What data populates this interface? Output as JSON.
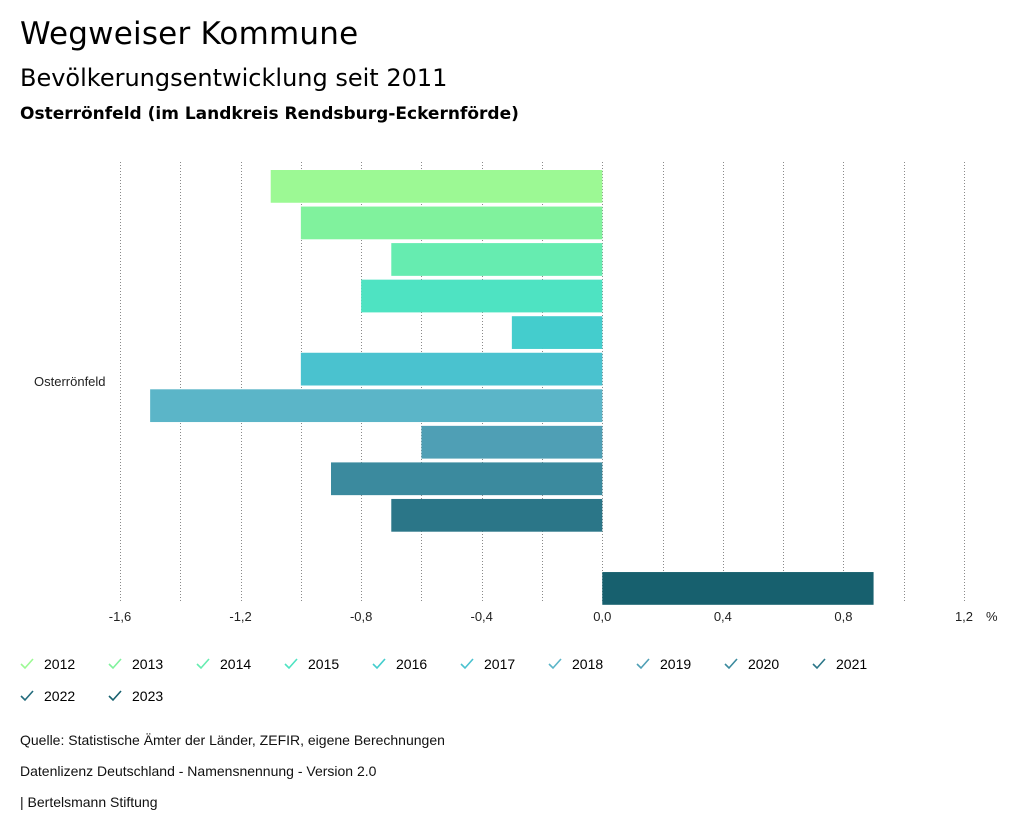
{
  "header": {
    "title": "Wegweiser Kommune",
    "subtitle": "Bevölkerungsentwicklung seit 2011",
    "region": "Osterrönfeld (im Landkreis Rendsburg-Eckernförde)"
  },
  "chart_data": {
    "type": "bar",
    "orientation": "horizontal",
    "categories": [
      "Osterrönfeld"
    ],
    "series": [
      {
        "name": "2012",
        "values": [
          -1.1
        ],
        "color": "#9cf994"
      },
      {
        "name": "2013",
        "values": [
          -1.0
        ],
        "color": "#80f29d"
      },
      {
        "name": "2014",
        "values": [
          -0.7
        ],
        "color": "#66ecb0"
      },
      {
        "name": "2015",
        "values": [
          -0.8
        ],
        "color": "#4ee3c2"
      },
      {
        "name": "2016",
        "values": [
          -0.3
        ],
        "color": "#44cdcd"
      },
      {
        "name": "2017",
        "values": [
          -1.0
        ],
        "color": "#4ac2cf"
      },
      {
        "name": "2018",
        "values": [
          -1.5
        ],
        "color": "#5bb5c8"
      },
      {
        "name": "2019",
        "values": [
          -0.6
        ],
        "color": "#4f9fb5"
      },
      {
        "name": "2020",
        "values": [
          -0.9
        ],
        "color": "#3b8a9e"
      },
      {
        "name": "2021",
        "values": [
          -0.7
        ],
        "color": "#2b7688"
      },
      {
        "name": "2022",
        "values": [
          null
        ],
        "color": "#226b7c"
      },
      {
        "name": "2023",
        "values": [
          0.9
        ],
        "color": "#17606e"
      }
    ],
    "xlim": [
      -1.6,
      1.2
    ],
    "xticks": [
      -1.6,
      -1.2,
      -0.8,
      -0.4,
      0.0,
      0.4,
      0.8,
      1.2
    ],
    "xtick_labels": [
      "-1,6",
      "-1,2",
      "-0,8",
      "-0,4",
      "0,0",
      "0,4",
      "0,8",
      "1,2"
    ],
    "unit_label": "%",
    "grid": true
  },
  "footer": {
    "source": "Quelle: Statistische Ämter der Länder, ZEFIR, eigene Berechnungen",
    "license": "Datenlizenz Deutschland - Namensnennung - Version 2.0",
    "publisher": "| Bertelsmann Stiftung"
  }
}
